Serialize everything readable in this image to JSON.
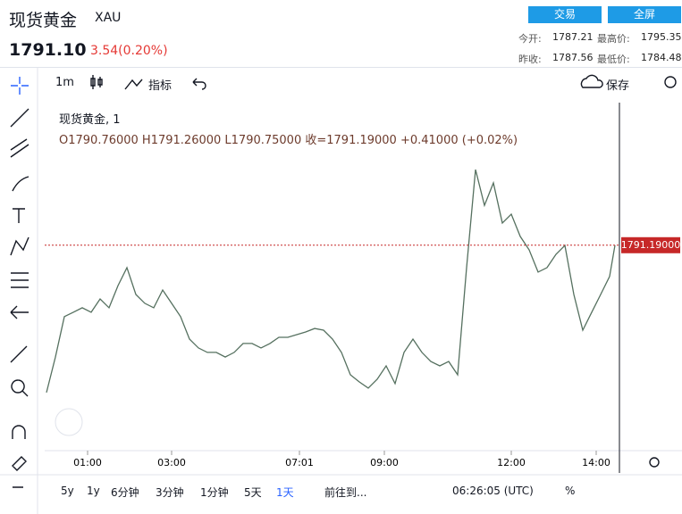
{
  "header": {
    "title": "现货黄金",
    "symbol": "XAU",
    "price": "1791.10",
    "change": "3.54(0.20%)",
    "buttons": [
      "交易",
      "全屏"
    ],
    "stats": [
      [
        "今开:",
        "1787.21",
        "最高价:",
        "1795.35"
      ],
      [
        "昨收:",
        "1787.56",
        "最低价:",
        "1784.48"
      ]
    ]
  },
  "toolbar": {
    "interval": "1m",
    "indicators": "指标",
    "save": "保存"
  },
  "legend": {
    "name": "现货黄金, 1",
    "ohlc": "O1790.76000  H1791.26000  L1790.75000  收=1791.19000  +0.41000 (+0.02%)"
  },
  "chart_data": {
    "type": "line",
    "color": "#55705f",
    "x": [
      0,
      1,
      2,
      3,
      4,
      5,
      6,
      7,
      8,
      9,
      10,
      11,
      12,
      13,
      14,
      15,
      16,
      17,
      18,
      19,
      20,
      21,
      22,
      23,
      24,
      25,
      26,
      27,
      28,
      29,
      30,
      31,
      32,
      33,
      34,
      35,
      36,
      37,
      38,
      39,
      40,
      41,
      42,
      43,
      44,
      45,
      46,
      47,
      48,
      49,
      50,
      51,
      52,
      53,
      54,
      55,
      56,
      57,
      58,
      59,
      60,
      61,
      62,
      63,
      63.6
    ],
    "values": [
      1785.21,
      1786.65,
      1788.29,
      1788.47,
      1788.65,
      1788.47,
      1789.01,
      1788.65,
      1789.55,
      1790.28,
      1789.19,
      1788.83,
      1788.65,
      1789.37,
      1788.83,
      1788.29,
      1787.38,
      1787.02,
      1786.84,
      1786.84,
      1786.65,
      1786.84,
      1787.2,
      1787.2,
      1787.02,
      1787.2,
      1787.45,
      1787.45,
      1787.56,
      1787.67,
      1787.81,
      1787.74,
      1787.38,
      1786.84,
      1785.93,
      1785.64,
      1785.39,
      1785.75,
      1786.29,
      1785.57,
      1786.84,
      1787.38,
      1786.84,
      1786.47,
      1786.29,
      1786.47,
      1785.93,
      1790.28,
      1794.26,
      1792.81,
      1793.72,
      1792.09,
      1792.45,
      1791.55,
      1791.0,
      1790.1,
      1790.28,
      1790.82,
      1791.18,
      1789.19,
      1787.74,
      1788.47,
      1789.19,
      1789.92,
      1791.19
    ],
    "xlim": [
      -0.2,
      64.1
    ],
    "ylim": [
      1782.85,
      1796.87
    ],
    "xticks": [
      {
        "value": 4.6,
        "label": "01:00"
      },
      {
        "value": 14,
        "label": "03:00"
      },
      {
        "value": 28.3,
        "label": "07:01"
      },
      {
        "value": 37.8,
        "label": "09:00"
      },
      {
        "value": 52,
        "label": "12:00"
      },
      {
        "value": 61.5,
        "label": "14:00"
      }
    ],
    "last_price": {
      "value": 1791.19,
      "label": "1791.19000"
    },
    "last_price_color": "#c62828"
  },
  "footer": {
    "ranges": [
      "5y",
      "1y",
      "6分钟",
      "3分钟",
      "1分钟",
      "5天",
      "1天"
    ],
    "goto": "前往到...",
    "clock": "06:26:05 (UTC)",
    "percent": "%"
  }
}
